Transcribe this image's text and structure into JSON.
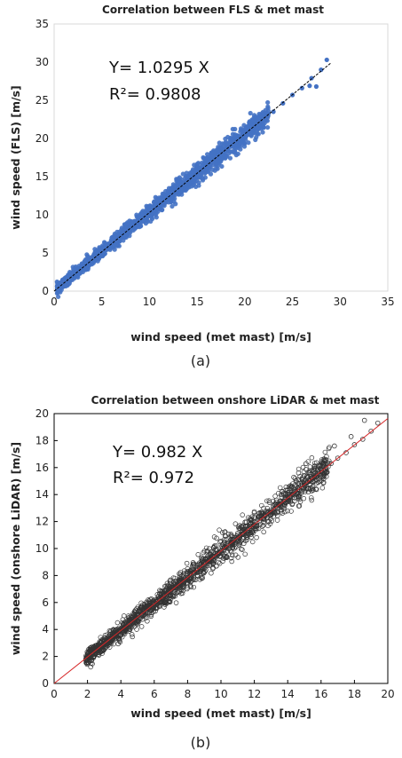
{
  "chart_data": [
    {
      "type": "scatter",
      "panel_caption": "(a)",
      "title": "Correlation between FLS & met mast",
      "xlabel": "wind speed (met mast) [m/s]",
      "ylabel": "wind speed (FLS) [m/s]",
      "xlim": [
        0,
        35
      ],
      "ylim": [
        0,
        35
      ],
      "xticks": [
        "0",
        "5",
        "10",
        "15",
        "20",
        "25",
        "30",
        "35"
      ],
      "yticks": [
        "0",
        "5",
        "10",
        "15",
        "20",
        "25",
        "30",
        "35"
      ],
      "grid": false,
      "equation": "Y= 1.0295 X",
      "r_squared": "R²= 0.9808",
      "fit": {
        "slope": 1.0295,
        "x": [
          0,
          29
        ]
      },
      "series": [
        {
          "marker": "filled-circle",
          "color": "#4472c4",
          "points": [
            [
              0.5,
              0.6
            ],
            [
              1.0,
              1.1
            ],
            [
              1.5,
              1.4
            ],
            [
              2.0,
              2.2
            ],
            [
              2.5,
              2.4
            ],
            [
              3.0,
              3.2
            ],
            [
              3.5,
              3.5
            ],
            [
              4.0,
              4.3
            ],
            [
              4.5,
              4.4
            ],
            [
              5.0,
              5.3
            ],
            [
              5.5,
              5.5
            ],
            [
              6.0,
              6.3
            ],
            [
              6.5,
              6.6
            ],
            [
              7.0,
              7.2
            ],
            [
              7.5,
              7.9
            ],
            [
              8.0,
              8.2
            ],
            [
              8.5,
              8.7
            ],
            [
              9.0,
              9.4
            ],
            [
              9.5,
              9.7
            ],
            [
              10.0,
              10.4
            ],
            [
              10.5,
              10.7
            ],
            [
              11.0,
              11.3
            ],
            [
              11.5,
              11.9
            ],
            [
              12.0,
              12.4
            ],
            [
              12.5,
              12.8
            ],
            [
              13.0,
              13.4
            ],
            [
              13.5,
              14.0
            ],
            [
              14.0,
              14.4
            ],
            [
              14.5,
              14.9
            ],
            [
              15.0,
              15.5
            ],
            [
              15.5,
              16.0
            ],
            [
              16.0,
              16.5
            ],
            [
              16.5,
              17.0
            ],
            [
              17.0,
              17.6
            ],
            [
              17.5,
              18.0
            ],
            [
              18.0,
              18.5
            ],
            [
              18.5,
              19.1
            ],
            [
              19.0,
              19.6
            ],
            [
              19.5,
              20.1
            ],
            [
              20.0,
              20.6
            ],
            [
              20.5,
              21.1
            ],
            [
              21.0,
              21.7
            ],
            [
              21.5,
              22.2
            ],
            [
              22.0,
              22.6
            ],
            [
              23.0,
              23.5
            ],
            [
              24.0,
              24.6
            ],
            [
              25.0,
              25.7
            ],
            [
              26.0,
              26.6
            ],
            [
              27.0,
              27.9
            ],
            [
              28.0,
              29.0
            ],
            [
              28.6,
              30.3
            ],
            [
              27.5,
              26.8
            ],
            [
              26.8,
              26.9
            ]
          ]
        }
      ]
    },
    {
      "type": "scatter",
      "panel_caption": "(b)",
      "title": "Correlation between onshore LiDAR & met mast",
      "xlabel": "wind speed (met mast) [m/s]",
      "ylabel": "wind speed (onshore LiDAR) [m/s]",
      "xlim": [
        0,
        20
      ],
      "ylim": [
        0,
        20
      ],
      "xticks": [
        "0",
        "2",
        "4",
        "6",
        "8",
        "10",
        "12",
        "14",
        "16",
        "18",
        "20"
      ],
      "yticks": [
        "0",
        "2",
        "4",
        "6",
        "8",
        "10",
        "12",
        "14",
        "16",
        "18",
        "20"
      ],
      "grid": false,
      "equation": "Y= 0.982 X",
      "r_squared": "R²= 0.972",
      "fit": {
        "slope": 0.982,
        "x": [
          0,
          20
        ],
        "color": "#d62728"
      },
      "series": [
        {
          "marker": "open-circle",
          "color": "#333333",
          "points": [
            [
              2.0,
              2.0
            ],
            [
              2.3,
              2.1
            ],
            [
              2.6,
              2.7
            ],
            [
              3.0,
              3.1
            ],
            [
              3.3,
              3.2
            ],
            [
              3.6,
              3.7
            ],
            [
              4.0,
              4.0
            ],
            [
              4.3,
              4.2
            ],
            [
              4.6,
              4.6
            ],
            [
              5.0,
              5.0
            ],
            [
              5.3,
              5.2
            ],
            [
              5.6,
              5.6
            ],
            [
              6.0,
              5.9
            ],
            [
              6.3,
              6.3
            ],
            [
              6.6,
              6.5
            ],
            [
              7.0,
              6.9
            ],
            [
              7.3,
              7.2
            ],
            [
              7.6,
              7.5
            ],
            [
              8.0,
              7.8
            ],
            [
              8.3,
              8.2
            ],
            [
              8.6,
              8.4
            ],
            [
              9.0,
              8.8
            ],
            [
              9.3,
              9.2
            ],
            [
              9.6,
              9.4
            ],
            [
              10.0,
              9.8
            ],
            [
              10.3,
              10.1
            ],
            [
              10.6,
              10.4
            ],
            [
              11.0,
              10.8
            ],
            [
              11.3,
              11.1
            ],
            [
              11.6,
              11.4
            ],
            [
              12.0,
              11.8
            ],
            [
              12.3,
              12.0
            ],
            [
              12.6,
              12.4
            ],
            [
              13.0,
              12.7
            ],
            [
              13.3,
              13.1
            ],
            [
              13.6,
              13.3
            ],
            [
              14.0,
              13.8
            ],
            [
              14.3,
              14.0
            ],
            [
              14.6,
              14.4
            ],
            [
              15.0,
              14.7
            ],
            [
              15.3,
              15.0
            ],
            [
              15.6,
              15.3
            ],
            [
              16.0,
              15.8
            ],
            [
              16.3,
              16.0
            ],
            [
              16.6,
              16.3
            ],
            [
              17.0,
              16.7
            ],
            [
              17.5,
              17.1
            ],
            [
              18.0,
              17.7
            ],
            [
              18.5,
              18.1
            ],
            [
              19.0,
              18.7
            ],
            [
              19.4,
              19.3
            ],
            [
              18.6,
              19.5
            ],
            [
              17.8,
              18.3
            ],
            [
              16.8,
              17.6
            ],
            [
              15.1,
              16.3
            ]
          ]
        }
      ]
    }
  ]
}
